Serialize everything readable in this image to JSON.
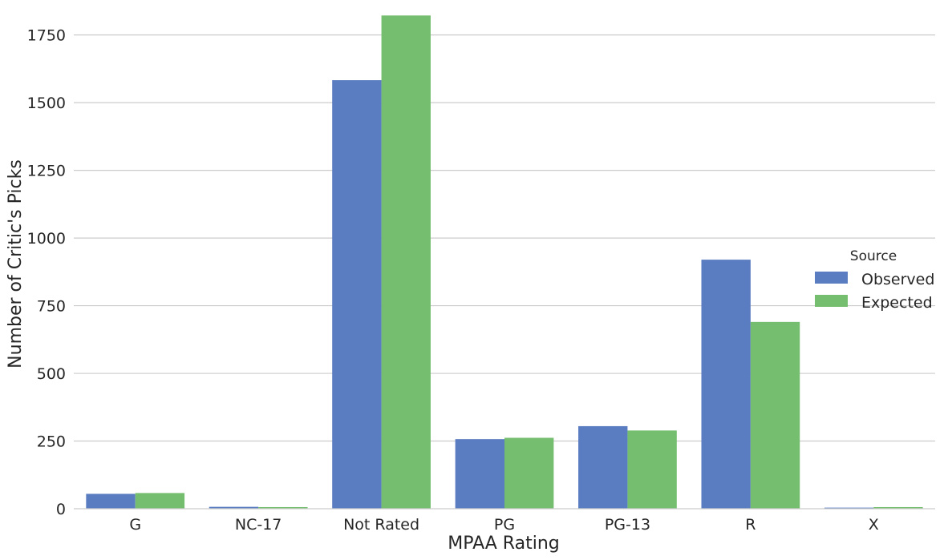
{
  "chart_data": {
    "type": "bar",
    "categories": [
      "G",
      "NC-17",
      "Not Rated",
      "PG",
      "PG-13",
      "R",
      "X"
    ],
    "series": [
      {
        "name": "Observed",
        "color": "#5a7cc0",
        "values": [
          55,
          7,
          1583,
          257,
          305,
          920,
          4
        ]
      },
      {
        "name": "Expected",
        "color": "#75be6f",
        "values": [
          58,
          6,
          1822,
          262,
          289,
          690,
          6
        ]
      }
    ],
    "xlabel": "MPAA Rating",
    "ylabel": "Number of Critic's Picks",
    "ylim": [
      0,
      1820
    ],
    "yticks": [
      0,
      250,
      500,
      750,
      1000,
      1250,
      1500,
      1750
    ],
    "grid": "horizontal",
    "legend": {
      "title": "Source",
      "placement": "right"
    }
  }
}
